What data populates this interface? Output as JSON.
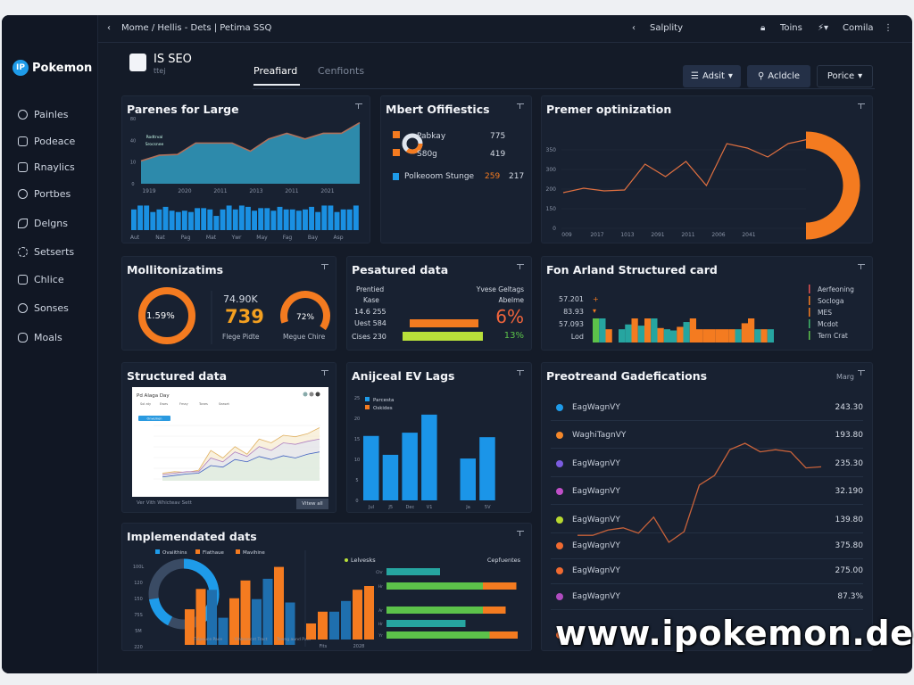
{
  "topbar": {
    "breadcrumb": "Mome / Hellis - Dets | Petima SSQ",
    "center": "Salplity",
    "user": "Toins",
    "menu": "Comila"
  },
  "sidebar": {
    "logo_badge": "IP",
    "logo": "Pokemon",
    "items": [
      "Painles",
      "Podeace",
      "Rnaylics",
      "Portbes",
      "Delgns",
      "Setserts",
      "Chlice",
      "Sonses",
      "Moals"
    ]
  },
  "header": {
    "title": "IS SEO",
    "subtitle": "ttej",
    "tabs": [
      "Preafiard",
      "Cenfionts"
    ],
    "active_tab": 0,
    "buttons": {
      "adsit": "Adsit",
      "acldcle": "Acldcle",
      "porice": "Porice"
    }
  },
  "colors": {
    "accent": "#f47b20",
    "blue": "#1e9be9",
    "teal": "#26a5a0",
    "green": "#5cc24a",
    "lime": "#b8e03a"
  },
  "cards": {
    "parenes": {
      "title": "Parenes for Large",
      "area": {
        "legend": [
          "Rodtrval",
          "Srocsnee"
        ],
        "yticks": [
          "0",
          "10",
          "40",
          "80"
        ],
        "ylim": [
          0,
          80
        ],
        "values": [
          28,
          35,
          36,
          50,
          50,
          50,
          40,
          55,
          62,
          55,
          62,
          62,
          75
        ],
        "xlabels": [
          "1919",
          "2020",
          "2011",
          "2013",
          "2011",
          "2021"
        ]
      },
      "bars": {
        "values": [
          0.8,
          0.95,
          0.95,
          0.7,
          0.8,
          0.9,
          0.75,
          0.7,
          0.75,
          0.7,
          0.85,
          0.85,
          0.8,
          0.55,
          0.8,
          0.95,
          0.8,
          0.95,
          0.9,
          0.75,
          0.85,
          0.85,
          0.75,
          0.9,
          0.8,
          0.8,
          0.75,
          0.8,
          0.9,
          0.7,
          0.95,
          0.95,
          0.7,
          0.8,
          0.8,
          0.95
        ],
        "xlabels": [
          "Aut",
          "Nat",
          "Pag",
          "Mat",
          "Ywr",
          "May",
          "Fag",
          "Bay",
          "Asp"
        ]
      }
    },
    "mbert": {
      "title": "Mbert Ofifiestics",
      "rows": [
        {
          "label": "Pabkay",
          "value": "775"
        },
        {
          "label": "S80g",
          "value": "419"
        },
        {
          "label": "Polkeoom Stunge",
          "value": "259",
          "value2": "217"
        }
      ]
    },
    "premer": {
      "title": "Premer optinization",
      "yticks": [
        "0",
        "150",
        "200",
        "300",
        "350"
      ],
      "ylim": [
        0,
        400
      ],
      "values": [
        160,
        180,
        168,
        172,
        288,
        232,
        300,
        192,
        380,
        360,
        320,
        380,
        400
      ],
      "xlabels": [
        "009",
        "2017",
        "1013",
        "2091",
        "2011",
        "2006",
        "2041"
      ],
      "gauge": 0.5
    },
    "mollit": {
      "title": "Mollitonizatims",
      "donut_label": "1.59%",
      "donut": 1.0,
      "stat_top": "74.90K",
      "stat_big": "739",
      "stat_caption": "Flege Pidte",
      "gauge_label": "72%",
      "gauge": 0.72,
      "gauge_caption": "Megue Chire"
    },
    "pesatured": {
      "title": "Pesatured data",
      "left": [
        "Prentied",
        "Kase",
        "14.6 255",
        "Uest 584",
        "Cises 230"
      ],
      "right": [
        "Yvese Geltags",
        "Abelme"
      ],
      "bar1": 0.85,
      "bar2": 1.0,
      "pct_big": "6%",
      "pct_small": "13%"
    },
    "fon": {
      "title": "Fon Arland Structured card",
      "left": [
        "57.201",
        "83.93",
        "57.093",
        "Lod"
      ],
      "bars": [
        [
          1,
          "g"
        ],
        [
          1,
          "t"
        ],
        [
          0.55,
          "o"
        ],
        [
          0,
          "x"
        ],
        [
          0.55,
          "t"
        ],
        [
          0.75,
          "t"
        ],
        [
          1,
          "o"
        ],
        [
          0.7,
          "t"
        ],
        [
          1,
          "o"
        ],
        [
          1,
          "t"
        ],
        [
          0.6,
          "o"
        ],
        [
          0.55,
          "t"
        ],
        [
          0.5,
          "t"
        ],
        [
          0.65,
          "o"
        ],
        [
          0.85,
          "t"
        ],
        [
          1,
          "o"
        ],
        [
          0.55,
          "o"
        ],
        [
          0.55,
          "o"
        ],
        [
          0.55,
          "o"
        ],
        [
          0.55,
          "o"
        ],
        [
          0.55,
          "o"
        ],
        [
          0.55,
          "o"
        ],
        [
          0.55,
          "t"
        ],
        [
          0.8,
          "o"
        ],
        [
          1,
          "o"
        ],
        [
          0.55,
          "t"
        ],
        [
          0.55,
          "o"
        ],
        [
          0.55,
          "t"
        ]
      ],
      "legend": [
        {
          "label": "Aerfeoning",
          "color": "#e05050"
        },
        {
          "label": "Socloga",
          "color": "#f47b20"
        },
        {
          "label": "MES",
          "color": "#f47b20"
        },
        {
          "label": "Mcdot",
          "color": "#3fb56a"
        },
        {
          "label": "Tern Crat",
          "color": "#5cc24a"
        }
      ]
    },
    "structured": {
      "title": "Structured data",
      "panel_title": "Pd Alaga Day",
      "panel_tabs": [
        "Sol aty",
        "Ewes",
        "Fmay",
        "Tones",
        "Seaset"
      ],
      "panel_pill": "Onvemen",
      "series": [
        [
          10,
          12,
          11,
          14,
          40,
          30,
          45,
          35,
          55,
          50,
          60,
          58,
          62,
          70
        ],
        [
          8,
          10,
          12,
          12,
          30,
          25,
          38,
          32,
          45,
          40,
          50,
          48,
          52,
          55
        ],
        [
          5,
          7,
          9,
          10,
          20,
          18,
          28,
          25,
          32,
          28,
          33,
          30,
          35,
          38
        ]
      ],
      "footer": "Ver Vith Whicteav Sett",
      "button": "Vitew all"
    },
    "anijceal": {
      "title": "Anijceal EV Lags",
      "legend": [
        "Parcesta",
        "Oskides"
      ],
      "yticks": [
        "0",
        "5",
        "10",
        "15",
        "20",
        "25"
      ],
      "ylim": [
        0,
        25
      ],
      "values": [
        15.7,
        11.1,
        16.5,
        20.9,
        null,
        10.2,
        15.4
      ],
      "xlabels": [
        "Jul",
        "J5",
        "Dec",
        "V1",
        "",
        "Ja",
        "5V"
      ]
    },
    "preotreand": {
      "title": "Preotreand Gadefications",
      "header_right": "Marg",
      "rows": [
        {
          "label": "EagWagnVY",
          "value": "243.30",
          "color": "#1e9be9"
        },
        {
          "label": "WaghiTagnVY",
          "value": "193.80",
          "color": "#f4872a"
        },
        {
          "label": "EagWagnVY",
          "value": "235.30",
          "color": "#7b5ce0"
        },
        {
          "label": "EagWagnVY",
          "value": "32.190",
          "color": "#c04fc8"
        },
        {
          "label": "EagWagnVY",
          "value": "139.80",
          "color": "#b8d830"
        },
        {
          "label": "EagWagnVY",
          "value": "375.80",
          "color": "#f06a30"
        },
        {
          "label": "EagWagnVY",
          "value": "275.00",
          "color": "#f06a30"
        },
        {
          "label": "EagWagnVY",
          "value": "87.3%",
          "color": "#b04cc0"
        }
      ],
      "line": [
        9,
        9,
        14,
        16,
        11,
        26,
        2.5,
        12.5,
        56,
        65,
        89,
        95,
        87,
        89,
        87,
        72,
        73
      ]
    },
    "implem": {
      "title": "Implemendated dats",
      "legend": [
        {
          "label": "Ovaiithins",
          "color": "#1e9be9"
        },
        {
          "label": "Flathaue",
          "color": "#f47b20"
        },
        {
          "label": "Mavihine",
          "color": "#f47b20"
        }
      ],
      "yticks": [
        "100L",
        "120",
        "150",
        "75S",
        "5M",
        "220"
      ],
      "donut": 0.42,
      "bars": [
        [
          42,
          "o"
        ],
        [
          66,
          "o"
        ],
        [
          65,
          "b"
        ],
        [
          32,
          "b"
        ],
        [
          55,
          "o"
        ],
        [
          76,
          "o"
        ],
        [
          54,
          "b"
        ],
        [
          78,
          "b"
        ],
        [
          92,
          "o"
        ],
        [
          50,
          "b"
        ]
      ],
      "xlabels": [
        "Fulpouce Pace",
        "Vinbscecnt Tract",
        "Tewng aund Paet"
      ],
      "right_legend": "Lelvesks",
      "right_header": "Cepfuentes",
      "vbars": [
        [
          30,
          "o"
        ],
        [
          52,
          "o"
        ],
        [
          52,
          "b"
        ],
        [
          72,
          "b"
        ],
        [
          93,
          "o"
        ],
        [
          100,
          "o"
        ]
      ],
      "vx": [
        "Fits",
        "2028"
      ],
      "hbars": [
        {
          "label": "Chr",
          "a": 40,
          "b": 0,
          "c": "t"
        },
        {
          "label": "Hr",
          "a": 72,
          "b": 25,
          "c": "g"
        },
        {
          "label": "Ar",
          "a": 72,
          "b": 17,
          "c": "g"
        },
        {
          "label": "Hr",
          "a": 59,
          "b": 0,
          "c": "t"
        },
        {
          "label": "Yr",
          "a": 77,
          "b": 21,
          "c": "g"
        }
      ]
    }
  },
  "watermark": "www.ipokemon.de"
}
